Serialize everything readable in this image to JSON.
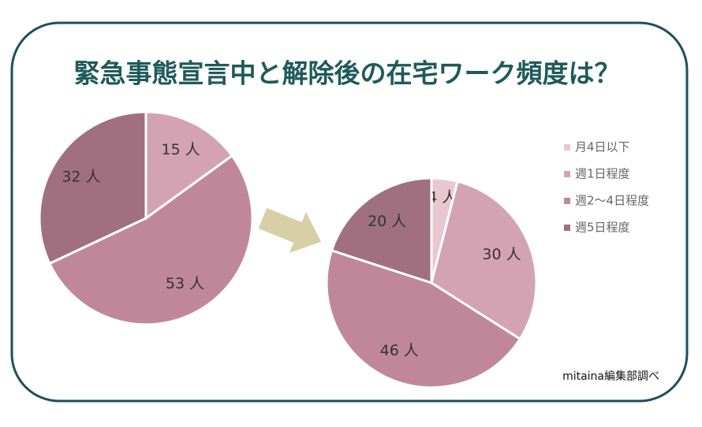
{
  "title": "緊急事態宣言中と解除後の在宅ワーク頻度は？",
  "source": "mitaina編集部調べ",
  "chart_data": [
    {
      "type": "pie",
      "values": [
        15,
        53,
        32
      ],
      "value_labels": [
        "15 人",
        "53 人",
        "32 人"
      ],
      "colors": [
        "#d4a3b3",
        "#c0879a",
        "#a07080"
      ]
    },
    {
      "type": "pie",
      "categories": [
        "月4日以下",
        "週1日程度",
        "週2〜4日程度",
        "週5日程度"
      ],
      "values": [
        4,
        30,
        46,
        20
      ],
      "value_labels": [
        "4 人",
        "30 人",
        "46 人",
        "20 人"
      ],
      "colors": [
        "#e8c8d0",
        "#d4a3b3",
        "#c0879a",
        "#a07080"
      ],
      "legend": "right"
    }
  ]
}
